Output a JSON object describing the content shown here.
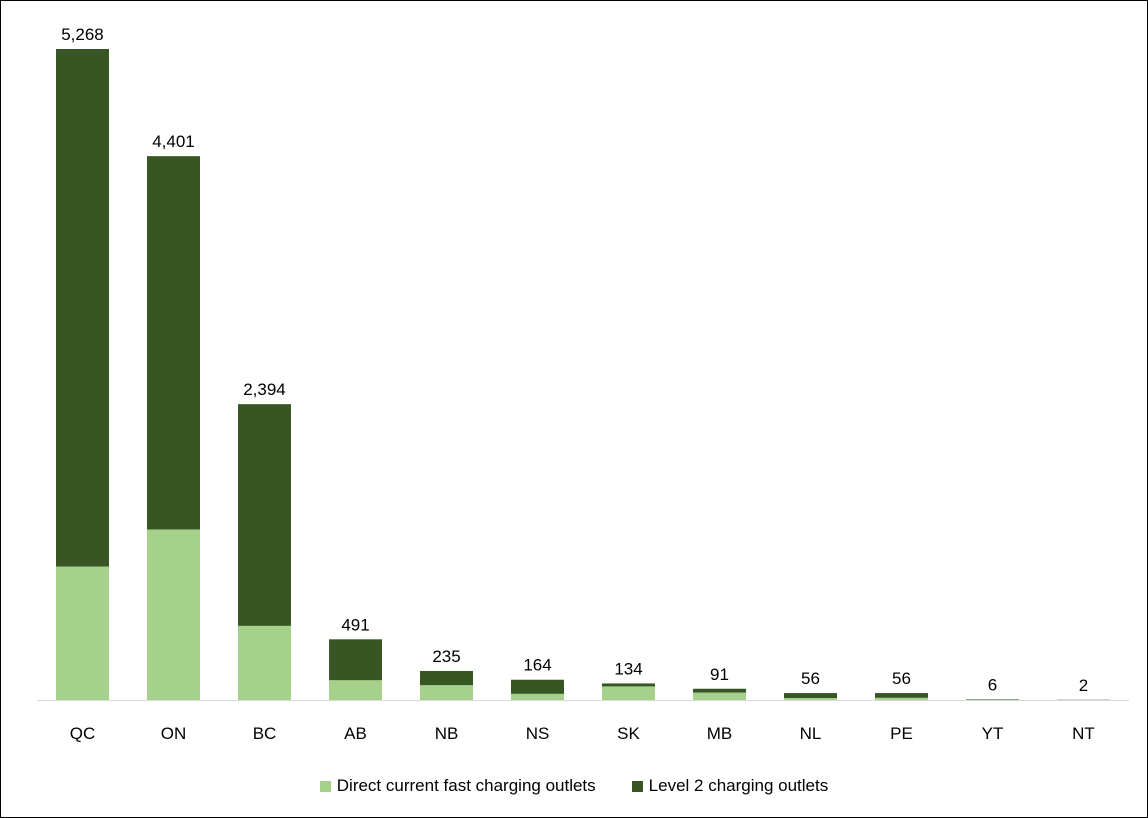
{
  "chart_data": {
    "type": "bar",
    "stacked": true,
    "categories": [
      "QC",
      "ON",
      "BC",
      "AB",
      "NB",
      "NS",
      "SK",
      "MB",
      "NL",
      "PE",
      "YT",
      "NT"
    ],
    "series": [
      {
        "name": "Direct current fast charging outlets",
        "color": "#a5d18a",
        "values": [
          1080,
          1380,
          600,
          160,
          120,
          50,
          110,
          60,
          16,
          18,
          2,
          0
        ]
      },
      {
        "name": "Level 2 charging outlets",
        "color": "#375623",
        "values": [
          4188,
          3021,
          1794,
          331,
          115,
          114,
          24,
          31,
          40,
          38,
          4,
          2
        ]
      }
    ],
    "totals": [
      5268,
      4401,
      2394,
      491,
      235,
      164,
      134,
      91,
      56,
      56,
      6,
      2
    ],
    "total_labels": [
      "5,268",
      "4,401",
      "2,394",
      "491",
      "235",
      "164",
      "134",
      "91",
      "56",
      "56",
      "6",
      "2"
    ],
    "ylim": [
      0,
      5268
    ],
    "grid": false,
    "legend_position": "bottom-center"
  }
}
